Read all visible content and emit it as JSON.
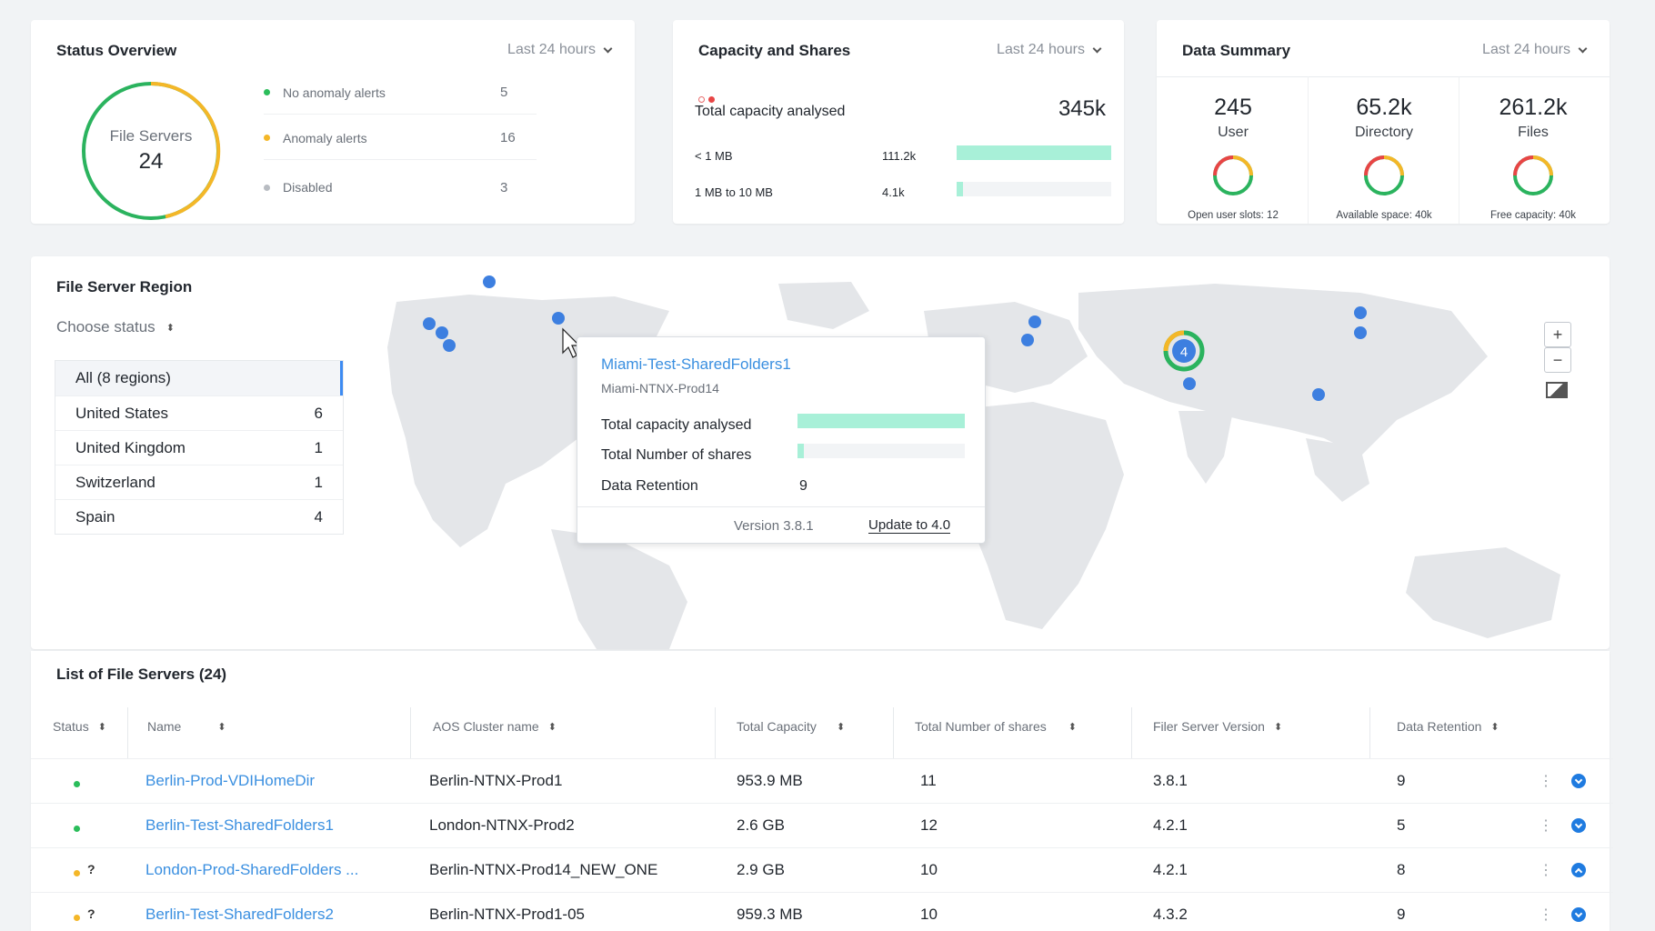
{
  "status_overview": {
    "title": "Status Overview",
    "range": "Last 24 hours",
    "donut_label": "File Servers",
    "donut_value": "24",
    "items": [
      {
        "label": "No anomaly alerts",
        "count": "5",
        "color": "#2bbd5b"
      },
      {
        "label": "Anomaly alerts",
        "count": "16",
        "color": "#f4b728"
      },
      {
        "label": "Disabled",
        "count": "3",
        "color": "#b8bcc2"
      }
    ]
  },
  "capacity": {
    "title": "Capacity and Shares",
    "range": "Last 24 hours",
    "total_label": "Total capacity analysed",
    "total_value": "345k",
    "rows": [
      {
        "label": "< 1 MB",
        "value": "111.2k",
        "fill": 1.0
      },
      {
        "label": "1 MB to 10 MB",
        "value": "4.1k",
        "fill": 0.04
      }
    ]
  },
  "data_summary": {
    "title": "Data Summary",
    "range": "Last 24 hours",
    "cols": [
      {
        "value": "245",
        "label": "User",
        "note": "Open user slots: 12"
      },
      {
        "value": "65.2k",
        "label": "Directory",
        "note": "Available space: 40k"
      },
      {
        "value": "261.2k",
        "label": "Files",
        "note": "Free capacity: 40k"
      }
    ]
  },
  "region": {
    "title": "File Server Region",
    "choose_status": "Choose status",
    "regions": [
      {
        "name": "All (8 regions)",
        "count": ""
      },
      {
        "name": "United States",
        "count": "6"
      },
      {
        "name": "United Kingdom",
        "count": "1"
      },
      {
        "name": "Switzerland",
        "count": "1"
      },
      {
        "name": "Spain",
        "count": "4"
      }
    ],
    "cluster_count": "4",
    "zoom_in": "+",
    "zoom_out": "−"
  },
  "tooltip": {
    "title": "Miami-Test-SharedFolders1",
    "subtitle": "Miami-NTNX-Prod14",
    "capacity_label": "Total capacity analysed",
    "capacity_fill": 1.0,
    "shares_label": "Total Number of shares",
    "shares_fill": 0.04,
    "retention_label": "Data Retention",
    "retention_value": "9",
    "version": "Version 3.8.1",
    "update": "Update to 4.0"
  },
  "table": {
    "title": "List of File Servers (24)",
    "headers": [
      "Status",
      "Name",
      "AOS Cluster name",
      "Total Capacity",
      "Total Number of shares",
      "Filer Server Version",
      "Data Retention"
    ],
    "rows": [
      {
        "status_color": "#2bbd5b",
        "unknown": "",
        "name": "Berlin-Prod-VDIHomeDir",
        "cluster": "Berlin-NTNX-Prod1",
        "capacity": "953.9 MB",
        "shares": "11",
        "version": "3.8.1",
        "retention": "9",
        "expanded": false
      },
      {
        "status_color": "#2bbd5b",
        "unknown": "",
        "name": "Berlin-Test-SharedFolders1",
        "cluster": "London-NTNX-Prod2",
        "capacity": "2.6 GB",
        "shares": "12",
        "version": "4.2.1",
        "retention": "5",
        "expanded": false
      },
      {
        "status_color": "#f4b728",
        "unknown": "?",
        "name": "London-Prod-SharedFolders ...",
        "cluster": "Berlin-NTNX-Prod14_NEW_ONE",
        "capacity": "2.9 GB",
        "shares": "10",
        "version": "4.2.1",
        "retention": "8",
        "expanded": true
      },
      {
        "status_color": "#f4b728",
        "unknown": "?",
        "name": "Berlin-Test-SharedFolders2",
        "cluster": "Berlin-NTNX-Prod1-05",
        "capacity": "959.3 MB",
        "shares": "10",
        "version": "4.3.2",
        "retention": "9",
        "expanded": false
      }
    ]
  }
}
